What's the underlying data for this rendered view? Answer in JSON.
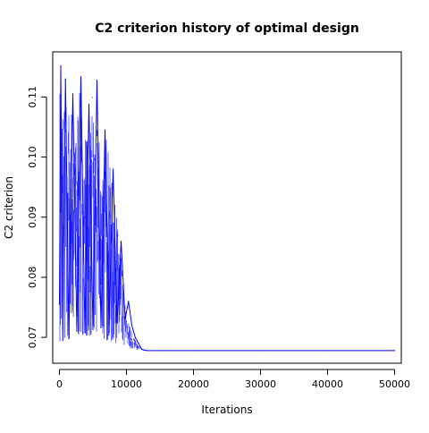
{
  "chart_data": {
    "type": "line",
    "title": "C2 criterion history of optimal design",
    "xlabel": "Iterations",
    "ylabel": "C2 criterion",
    "xlim": [
      -1000,
      51000
    ],
    "ylim": [
      0.0657,
      0.1175
    ],
    "x_ticks": [
      0,
      10000,
      20000,
      30000,
      40000,
      50000
    ],
    "x_tick_labels": [
      "0",
      "10000",
      "20000",
      "30000",
      "40000",
      "50000"
    ],
    "y_ticks": [
      0.07,
      0.08,
      0.09,
      0.1,
      0.11
    ],
    "y_tick_labels": [
      "0.07",
      "0.08",
      "0.09",
      "0.10",
      "0.11"
    ],
    "grid": false,
    "legend": "none",
    "series": [
      {
        "color": "#0000ff",
        "x": [
          0,
          200,
          500,
          900,
          1400,
          2000,
          2600,
          3200,
          3800,
          4400,
          5000,
          5600,
          6200,
          6800,
          7400,
          8000,
          8600,
          9200,
          9800,
          10300,
          10800,
          11300,
          11800,
          12300,
          13000,
          15000,
          20000,
          30000,
          40000,
          50000
        ],
        "y": [
          0.0755,
          0.1152,
          0.0695,
          0.113,
          0.0698,
          0.1105,
          0.071,
          0.1134,
          0.0708,
          0.1088,
          0.0713,
          0.1128,
          0.0716,
          0.1045,
          0.072,
          0.098,
          0.0725,
          0.086,
          0.073,
          0.076,
          0.072,
          0.07,
          0.069,
          0.068,
          0.0678,
          0.0678,
          0.0678,
          0.0678,
          0.0678,
          0.0678
        ]
      }
    ],
    "band": {
      "x": [
        0,
        500,
        1000,
        1500,
        2000,
        2500,
        3000,
        3500,
        4000,
        4500,
        5000,
        5500,
        6000,
        6500,
        7000,
        7500,
        8000,
        8500,
        9000,
        9500,
        10000,
        10500,
        11000,
        11500,
        12000,
        12500,
        13000
      ],
      "ymin": [
        0.0693,
        0.0694,
        0.0696,
        0.0697,
        0.07,
        0.0702,
        0.0704,
        0.0704,
        0.0703,
        0.0702,
        0.07,
        0.07,
        0.0699,
        0.0697,
        0.0695,
        0.0694,
        0.0692,
        0.069,
        0.0688,
        0.0685,
        0.0683,
        0.0682,
        0.0681,
        0.068,
        0.0679,
        0.0678,
        0.0678
      ],
      "ymax": [
        0.112,
        0.1125,
        0.11,
        0.109,
        0.108,
        0.107,
        0.111,
        0.106,
        0.104,
        0.102,
        0.112,
        0.105,
        0.103,
        0.1,
        0.1045,
        0.099,
        0.094,
        0.091,
        0.086,
        0.079,
        0.074,
        0.072,
        0.0705,
        0.0692,
        0.0684,
        0.068,
        0.0678
      ]
    }
  }
}
